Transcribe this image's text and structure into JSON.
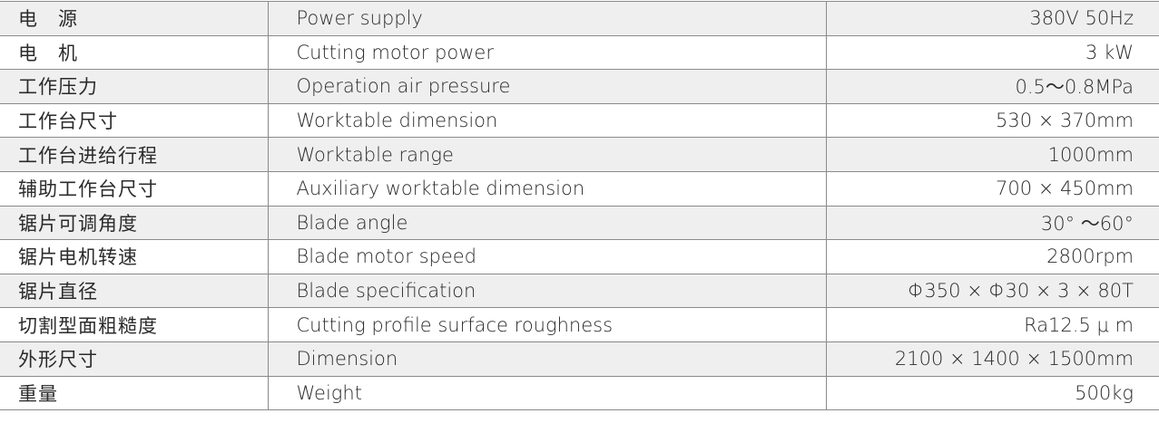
{
  "spec_table": {
    "rows": [
      {
        "zh": "电　源",
        "en": "Power supply",
        "value": "380V  50Hz"
      },
      {
        "zh": "电　机",
        "en": "Cutting motor power",
        "value": "3 kW"
      },
      {
        "zh": "工作压力",
        "en": "Operation air pressure",
        "value": "0.5～0.8MPa"
      },
      {
        "zh": "工作台尺寸",
        "en": "Worktable dimension",
        "value": "530 × 370mm"
      },
      {
        "zh": "工作台进给行程",
        "en": "Worktable range",
        "value": "1000mm"
      },
      {
        "zh": "辅助工作台尺寸",
        "en": "Auxiliary worktable dimension",
        "value": "700 × 450mm"
      },
      {
        "zh": "锯片可调角度",
        "en": "Blade angle",
        "value": "30° ～60°"
      },
      {
        "zh": "锯片电机转速",
        "en": "Blade motor speed",
        "value": "2800rpm"
      },
      {
        "zh": "锯片直径",
        "en": "Blade specification",
        "value": "Φ350 × Φ30 × 3 × 80T"
      },
      {
        "zh": "切割型面粗糙度",
        "en": "Cutting profile surface roughness",
        "value": "Ra12.5 μ m"
      },
      {
        "zh": "外形尺寸",
        "en": "Dimension",
        "value": "2100 × 1400 × 1500mm"
      },
      {
        "zh": "重量",
        "en": "Weight",
        "value": "500kg"
      }
    ]
  }
}
